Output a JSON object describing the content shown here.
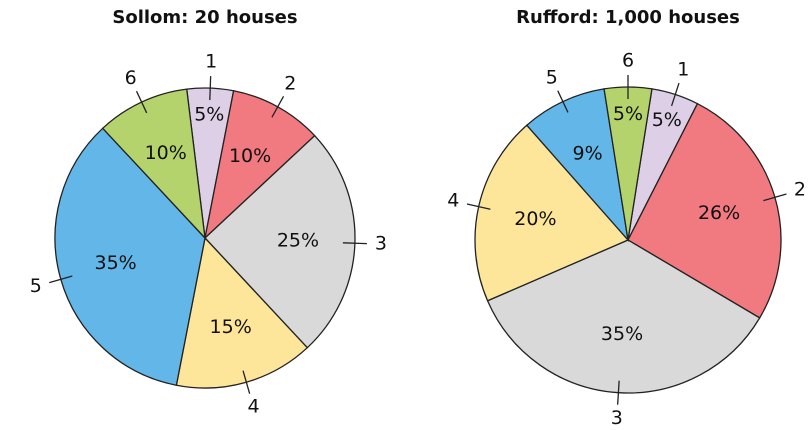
{
  "chart_data": [
    {
      "type": "pie",
      "title": "Sollom: 20 houses",
      "categories": [
        "1",
        "2",
        "3",
        "4",
        "5",
        "6"
      ],
      "values": [
        5,
        10,
        25,
        15,
        35,
        10
      ],
      "value_labels": [
        "5%",
        "10%",
        "25%",
        "15%",
        "35%",
        "10%"
      ],
      "colors": [
        "#dccfe6",
        "#f07a80",
        "#d9d9d9",
        "#fde599",
        "#63b7e8",
        "#b5d36c"
      ]
    },
    {
      "type": "pie",
      "title": "Rufford: 1,000 houses",
      "categories": [
        "1",
        "2",
        "3",
        "4",
        "5",
        "6"
      ],
      "values": [
        5,
        26,
        35,
        20,
        9,
        5
      ],
      "value_labels": [
        "5%",
        "26%",
        "35%",
        "20%",
        "9%",
        "5%"
      ],
      "colors": [
        "#dccfe6",
        "#f07a80",
        "#d9d9d9",
        "#fde599",
        "#63b7e8",
        "#b5d36c"
      ]
    }
  ]
}
